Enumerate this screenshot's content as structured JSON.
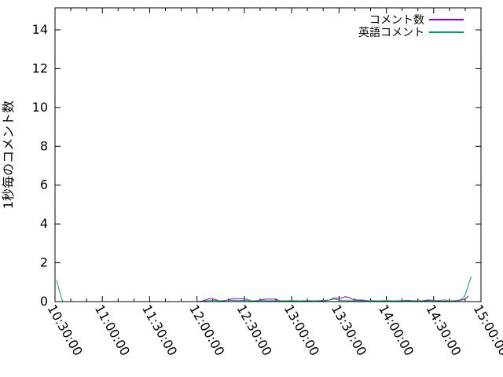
{
  "figure": {
    "background": "#ffffff",
    "axis_color": "#000000",
    "text_color": "#000000"
  },
  "chart_data": {
    "type": "line",
    "title": "",
    "xlabel": "",
    "ylabel": "1秒毎のコメント数",
    "grid": false,
    "legend_position": "top-right",
    "x_unit": "minutes since 10:30:00",
    "xlim_minutes": [
      0,
      270
    ],
    "x_major_tick_minutes": [
      0,
      30,
      60,
      90,
      120,
      150,
      180,
      210,
      240,
      270
    ],
    "x_tick_labels": [
      "10:30:00",
      "11:00:00",
      "11:30:00",
      "12:00:00",
      "12:30:00",
      "13:00:00",
      "13:30:00",
      "14:00:00",
      "14:30:00",
      "15:00:00"
    ],
    "x_minor_tick_interval_minutes": 10,
    "ylim": [
      0,
      14
    ],
    "y_top_value_at_border": 15.1,
    "y_ticks": [
      0,
      2,
      4,
      6,
      8,
      10,
      12,
      14
    ],
    "series": [
      {
        "name": "コメント数",
        "color": "#9400d3",
        "points": [
          [
            1,
            0
          ],
          [
            90,
            0
          ],
          [
            93,
            0.02
          ],
          [
            96,
            0.1
          ],
          [
            98,
            0.15
          ],
          [
            100,
            0.14
          ],
          [
            102,
            0.1
          ],
          [
            104,
            0.02
          ],
          [
            107,
            0.02
          ],
          [
            110,
            0.1
          ],
          [
            113,
            0.15
          ],
          [
            116,
            0.15
          ],
          [
            119,
            0.14
          ],
          [
            122,
            0.12
          ],
          [
            124,
            0.02
          ],
          [
            128,
            0.02
          ],
          [
            131,
            0.1
          ],
          [
            134,
            0.13
          ],
          [
            137,
            0.13
          ],
          [
            140,
            0.12
          ],
          [
            143,
            0.02
          ],
          [
            147,
            0.03
          ],
          [
            151,
            0.02
          ],
          [
            155,
            0.03
          ],
          [
            159,
            0.02
          ],
          [
            163,
            0.03
          ],
          [
            167,
            0.02
          ],
          [
            171,
            0.04
          ],
          [
            174,
            0.08
          ],
          [
            177,
            0.2
          ],
          [
            179,
            0.16
          ],
          [
            181,
            0.18
          ],
          [
            184,
            0.25
          ],
          [
            186,
            0.22
          ],
          [
            189,
            0.1
          ],
          [
            192,
            0.08
          ],
          [
            195,
            0.08
          ],
          [
            198,
            0.04
          ],
          [
            202,
            0.03
          ],
          [
            206,
            0.02
          ],
          [
            210,
            0.03
          ],
          [
            214,
            0.02
          ],
          [
            218,
            0.03
          ],
          [
            222,
            0.06
          ],
          [
            225,
            0.06
          ],
          [
            228,
            0.02
          ],
          [
            232,
            0.03
          ],
          [
            236,
            0.08
          ],
          [
            239,
            0.07
          ],
          [
            242,
            0.03
          ],
          [
            246,
            0.02
          ],
          [
            250,
            0.03
          ],
          [
            253,
            0.04
          ],
          [
            256,
            0.05
          ],
          [
            259,
            0.1
          ],
          [
            261,
            0.2
          ],
          [
            262,
            0.3
          ]
        ]
      },
      {
        "name": "英語コメント",
        "color": "#009e73",
        "points": [
          [
            1,
            1.1
          ],
          [
            2,
            0.8
          ],
          [
            3,
            0.5
          ],
          [
            4,
            0.2
          ],
          [
            5,
            0
          ],
          [
            93,
            0
          ],
          [
            95,
            0.04
          ],
          [
            100,
            0.06
          ],
          [
            105,
            0.04
          ],
          [
            110,
            0.07
          ],
          [
            115,
            0.05
          ],
          [
            120,
            0.06
          ],
          [
            125,
            0.04
          ],
          [
            130,
            0.06
          ],
          [
            135,
            0.04
          ],
          [
            140,
            0.05
          ],
          [
            145,
            0.04
          ],
          [
            150,
            0.05
          ],
          [
            155,
            0.04
          ],
          [
            160,
            0.05
          ],
          [
            165,
            0.04
          ],
          [
            170,
            0.06
          ],
          [
            174,
            0.08
          ],
          [
            177,
            0.13
          ],
          [
            180,
            0.08
          ],
          [
            183,
            0.05
          ],
          [
            187,
            0.04
          ],
          [
            191,
            0.05
          ],
          [
            195,
            0.04
          ],
          [
            200,
            0.05
          ],
          [
            205,
            0.04
          ],
          [
            210,
            0.05
          ],
          [
            215,
            0.04
          ],
          [
            220,
            0.05
          ],
          [
            225,
            0.04
          ],
          [
            230,
            0.05
          ],
          [
            235,
            0.04
          ],
          [
            240,
            0.05
          ],
          [
            244,
            0.06
          ],
          [
            247,
            0.09
          ],
          [
            249,
            0.05
          ],
          [
            252,
            0.04
          ],
          [
            255,
            0.06
          ],
          [
            257,
            0.09
          ],
          [
            259,
            0.2
          ],
          [
            260,
            0.35
          ],
          [
            261,
            0.6
          ],
          [
            262,
            0.85
          ],
          [
            263,
            1.1
          ],
          [
            264,
            1.3
          ]
        ]
      }
    ]
  }
}
